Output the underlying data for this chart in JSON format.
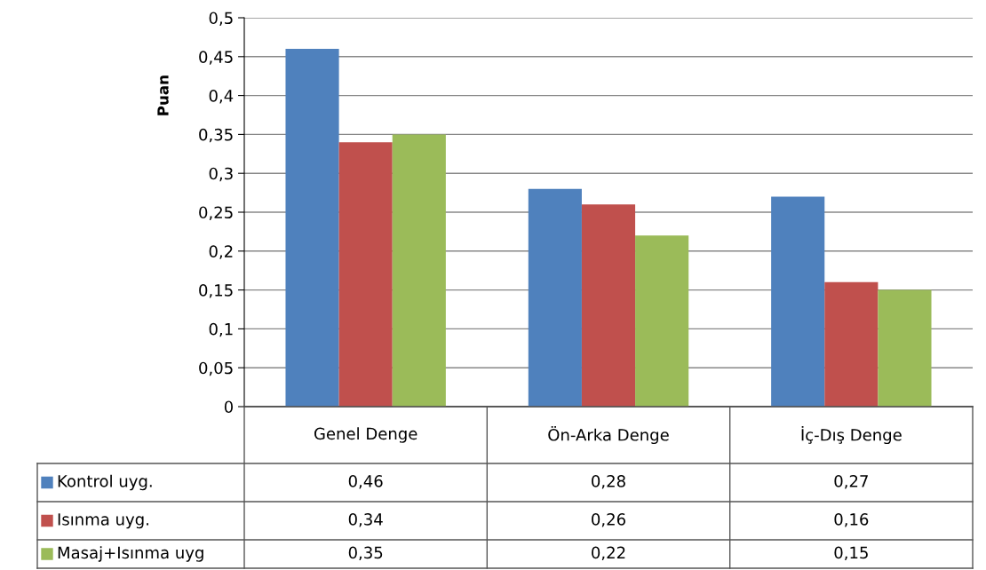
{
  "chart_data": {
    "type": "bar",
    "ylabel": "Puan",
    "categories": [
      "Genel Denge",
      "Ön-Arka Denge",
      "İç-Dış Denge"
    ],
    "series": [
      {
        "name": "Kontrol uyg.",
        "color": "#4f81bd",
        "values": [
          0.46,
          0.28,
          0.27
        ],
        "value_labels": [
          "0,46",
          "0,28",
          "0,27"
        ]
      },
      {
        "name": "Isınma uyg.",
        "color": "#c0504d",
        "values": [
          0.34,
          0.26,
          0.16
        ],
        "value_labels": [
          "0,34",
          "0,26",
          "0,16"
        ]
      },
      {
        "name": "Masaj+Isınma uyg",
        "color": "#9bbb59",
        "values": [
          0.35,
          0.22,
          0.15
        ],
        "value_labels": [
          "0,35",
          "0,22",
          "0,15"
        ]
      }
    ],
    "ylim": [
      0,
      0.5
    ],
    "yticks": [
      0,
      {
        "value": 0.05,
        "label": "0,05"
      },
      {
        "value": 0.1,
        "label": "0,1"
      },
      {
        "value": 0.15,
        "label": "0,15"
      },
      {
        "value": 0.2,
        "label": "0,2"
      },
      {
        "value": 0.25,
        "label": "0,25"
      },
      {
        "value": 0.3,
        "label": "0,3"
      },
      {
        "value": 0.35,
        "label": "0,35"
      },
      {
        "value": 0.4,
        "label": "0,4"
      },
      {
        "value": 0.45,
        "label": "0,45"
      },
      {
        "value": 0.5,
        "label": "0,5"
      }
    ],
    "grid": "y",
    "legend": "bottom left"
  }
}
